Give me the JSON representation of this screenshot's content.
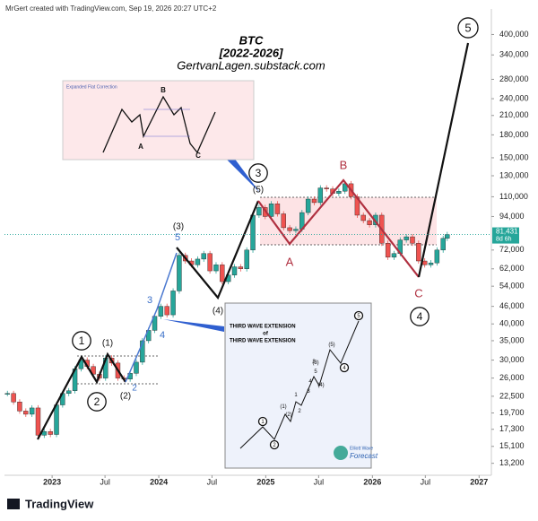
{
  "header": "MrGert created with TradingView.com, Sep 19, 2026 20:27 UTC+2",
  "footer": "TradingView",
  "chart_data": {
    "type": "candlestick",
    "title": "BTC",
    "subtitle": "[2022-2026]",
    "source": "GertvanLagen.substack.com",
    "log_scale": true,
    "xlim": [
      "2022-07-22",
      "2027-02-12"
    ],
    "ylim": [
      12000,
      490000
    ],
    "xticks": [
      {
        "value": "2023-01-01",
        "label": "2023"
      },
      {
        "value": "2023-07-01",
        "label": "Jul"
      },
      {
        "value": "2024-01-01",
        "label": "2024"
      },
      {
        "value": "2024-07-01",
        "label": "Jul"
      },
      {
        "value": "2025-01-01",
        "label": "2025"
      },
      {
        "value": "2025-07-01",
        "label": "Jul"
      },
      {
        "value": "2026-01-01",
        "label": "2026"
      },
      {
        "value": "2026-07-01",
        "label": "Jul"
      },
      {
        "value": "2027-01-01",
        "label": "2027"
      }
    ],
    "yticks": [
      {
        "value": 400000,
        "label": "400,000"
      },
      {
        "value": 340000,
        "label": "340,000"
      },
      {
        "value": 280000,
        "label": "280,000"
      },
      {
        "value": 240000,
        "label": "240,000"
      },
      {
        "value": 210000,
        "label": "210,000"
      },
      {
        "value": 180000,
        "label": "180,000"
      },
      {
        "value": 150000,
        "label": "150,000"
      },
      {
        "value": 130000,
        "label": "130,000"
      },
      {
        "value": 110000,
        "label": "110,000"
      },
      {
        "value": 94000,
        "label": "94,000"
      },
      {
        "value": 72000,
        "label": "72,000"
      },
      {
        "value": 62000,
        "label": "62,000"
      },
      {
        "value": 54000,
        "label": "54,000"
      },
      {
        "value": 46000,
        "label": "46,000"
      },
      {
        "value": 40000,
        "label": "40,000"
      },
      {
        "value": 35000,
        "label": "35,000"
      },
      {
        "value": 30000,
        "label": "30,000"
      },
      {
        "value": 26000,
        "label": "26,000"
      },
      {
        "value": 22500,
        "label": "22,500"
      },
      {
        "value": 19700,
        "label": "19,700"
      },
      {
        "value": 17300,
        "label": "17,300"
      },
      {
        "value": 15100,
        "label": "15,100"
      },
      {
        "value": 13200,
        "label": "13,200"
      }
    ],
    "current_price": {
      "value": 81431,
      "label": "81,431"
    },
    "countdown": "8d 6h",
    "up_color": "#26a69a",
    "down_color": "#ef5350",
    "series": [
      {
        "name": "BTC",
        "x": [
          "2022-08-01",
          "2022-08-22",
          "2022-09-12",
          "2022-10-03",
          "2022-10-24",
          "2022-11-14",
          "2022-12-05",
          "2022-12-26",
          "2023-01-16",
          "2023-02-06",
          "2023-02-27",
          "2023-03-20",
          "2023-04-10",
          "2023-05-01",
          "2023-05-22",
          "2023-06-12",
          "2023-07-03",
          "2023-07-24",
          "2023-08-14",
          "2023-09-04",
          "2023-09-25",
          "2023-10-16",
          "2023-11-06",
          "2023-11-27",
          "2023-12-18",
          "2024-01-08",
          "2024-01-29",
          "2024-02-19",
          "2024-03-11",
          "2024-04-01",
          "2024-04-22",
          "2024-05-13",
          "2024-06-03",
          "2024-06-24",
          "2024-07-15",
          "2024-08-05",
          "2024-08-26",
          "2024-09-16",
          "2024-10-07",
          "2024-10-28",
          "2024-11-18",
          "2024-12-09",
          "2024-12-30",
          "2025-01-20",
          "2025-02-10",
          "2025-03-03",
          "2025-03-24",
          "2025-04-14",
          "2025-05-05",
          "2025-05-26",
          "2025-06-16",
          "2025-07-07",
          "2025-07-28",
          "2025-08-18",
          "2025-09-08",
          "2025-09-29",
          "2025-10-20",
          "2025-11-10",
          "2025-12-01",
          "2025-12-22",
          "2026-01-12",
          "2026-02-02",
          "2026-02-23",
          "2026-03-16",
          "2026-04-06",
          "2026-04-27",
          "2026-05-18",
          "2026-06-08",
          "2026-06-29",
          "2026-07-20",
          "2026-08-10",
          "2026-08-31",
          "2026-09-14"
        ],
        "values": [
          23000,
          21500,
          20000,
          19500,
          20500,
          16500,
          17000,
          16600,
          21000,
          23000,
          23500,
          28000,
          30000,
          28500,
          26800,
          26000,
          30500,
          29300,
          26000,
          25800,
          27000,
          29500,
          35000,
          38000,
          42500,
          46000,
          43000,
          52000,
          69000,
          66000,
          64000,
          67000,
          70000,
          61000,
          64000,
          56000,
          59000,
          63000,
          62000,
          72000,
          95000,
          101000,
          94000,
          104000,
          96000,
          86000,
          84000,
          85000,
          97000,
          108000,
          105000,
          118000,
          117000,
          113000,
          115000,
          122000,
          110000,
          95000,
          91000,
          88000,
          95000,
          76000,
          68000,
          70000,
          78000,
          80000,
          76000,
          66000,
          64000,
          65000,
          72000,
          79000,
          81431
        ]
      }
    ],
    "wave_labels": [
      "1",
      "2",
      "(1)",
      "(2)",
      "2",
      "3",
      "4",
      "(3)",
      "5",
      "(4)",
      "3",
      "(5)",
      "A",
      "B",
      "C",
      "4",
      "5"
    ],
    "flat_inset": {
      "title": "Expanded Flat Correction",
      "labels": [
        "A",
        "B",
        "C"
      ]
    },
    "extension_inset": {
      "title": [
        "THIRD WAVE EXTENSION",
        "of",
        "THIRD WAVE EXTENSION"
      ],
      "labels": [
        "1",
        "2",
        "(1)",
        "(2)",
        "1",
        "2",
        "3",
        "4",
        "5",
        "(3)",
        "(4)",
        "(5)",
        "3",
        "4",
        "5"
      ],
      "logo": [
        "Elliott Wave",
        "Forecast"
      ]
    }
  }
}
